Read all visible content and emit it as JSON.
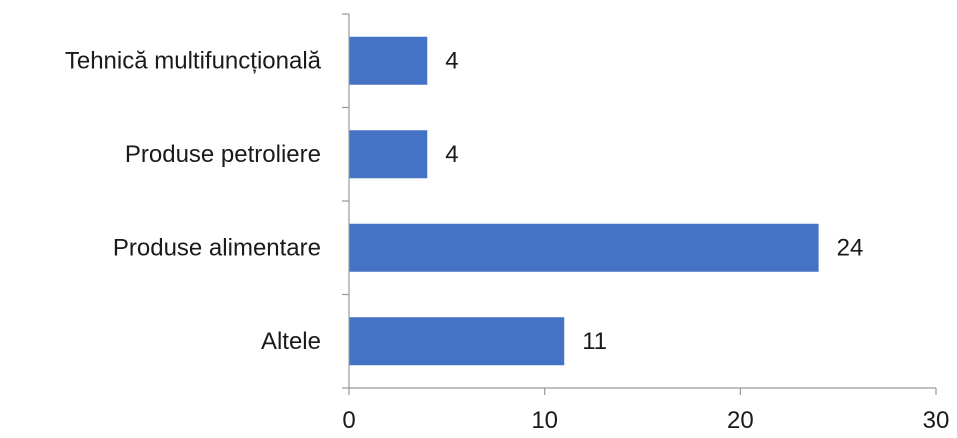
{
  "chart_data": {
    "type": "bar",
    "orientation": "horizontal",
    "categories": [
      "Tehnică multifuncțională",
      "Produse petroliere",
      "Produse alimentare",
      "Altele"
    ],
    "values": [
      4,
      4,
      24,
      11
    ],
    "data_labels": [
      "4",
      "4",
      "24",
      "11"
    ],
    "xlim": [
      0,
      30
    ],
    "xticks": [
      0,
      10,
      20,
      30
    ],
    "bar_color": "#4472c4",
    "grid": false,
    "legend": "none",
    "title": "",
    "xlabel": "",
    "ylabel": ""
  }
}
